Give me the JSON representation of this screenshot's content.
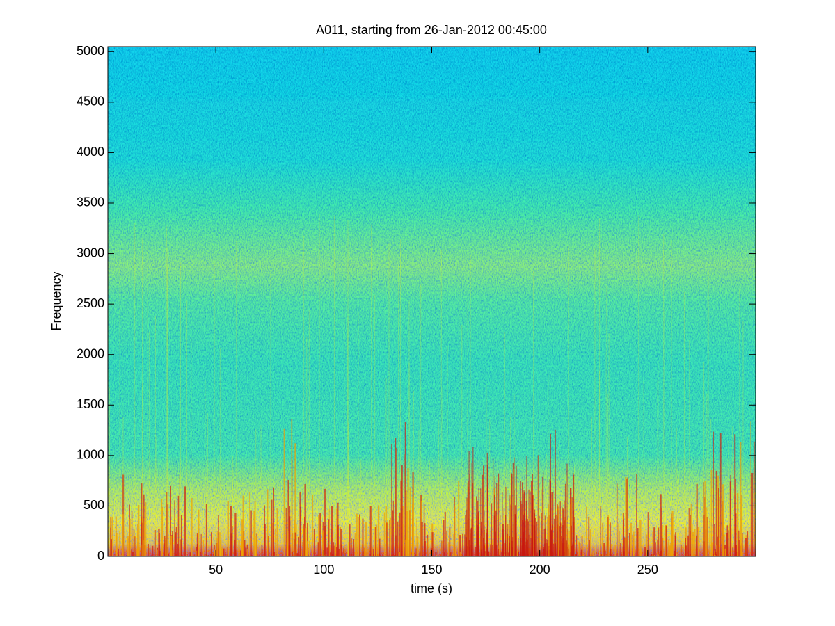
{
  "chart_data": {
    "type": "spectrogram",
    "title": "A011, starting from 26-Jan-2012 00:45:00",
    "x_label": "time (s)",
    "y_label": "Frequency",
    "xlim": [
      0,
      300
    ],
    "ylim": [
      0,
      5050
    ],
    "xticks": [
      50,
      100,
      150,
      200,
      250
    ],
    "yticks": [
      0,
      500,
      1000,
      1500,
      2000,
      2500,
      3000,
      3500,
      4000,
      4500,
      5000
    ],
    "colormap": "jet"
  }
}
